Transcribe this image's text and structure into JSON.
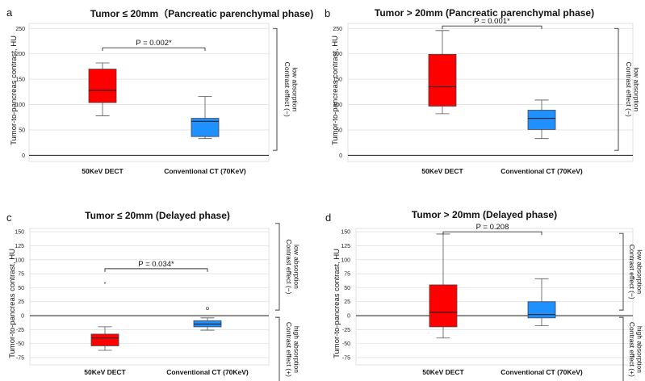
{
  "chart_data": [
    {
      "type": "box",
      "panel": "a",
      "title": "Tumor ≤ 20mm（Pancreatic parenchymal phase)",
      "ylabel": "Tumor-to-pancreas contrast, HU",
      "ylim": [
        -12,
        260
      ],
      "yticks": [
        0,
        50,
        100,
        150,
        200,
        250
      ],
      "categories": [
        "50KeV DECT",
        "Conventional CT (70KeV)"
      ],
      "boxes": [
        {
          "category": "50KeV DECT",
          "color": "#ff0000",
          "min": 78,
          "q1": 104,
          "median": 128,
          "q3": 170,
          "max": 182
        },
        {
          "category": "Conventional CT (70KeV)",
          "color": "#1e90ff",
          "min": 33,
          "q1": 37,
          "median": 67,
          "q3": 73,
          "max": 116
        }
      ],
      "outliers": [],
      "significance": {
        "label": "P = 0.002*",
        "y": 212
      },
      "brackets": [
        {
          "text": "low absorption\nContrast effect (−)",
          "from": 250,
          "to": 10
        }
      ]
    },
    {
      "type": "box",
      "panel": "b",
      "title": "Tumor > 20mm  (Pancreatic parenchymal phase)",
      "ylabel": "Tumor-to-pancreas contrast, HU",
      "ylim": [
        -12,
        260
      ],
      "yticks": [
        0,
        50,
        100,
        150,
        200,
        250
      ],
      "categories": [
        "50KeV DECT",
        "Conventional CT (70KeV)"
      ],
      "boxes": [
        {
          "category": "50KeV DECT",
          "color": "#ff0000",
          "min": 82,
          "q1": 97,
          "median": 135,
          "q3": 199,
          "max": 246
        },
        {
          "category": "Conventional CT (70KeV)",
          "color": "#1e90ff",
          "min": 33,
          "q1": 51,
          "median": 73,
          "q3": 89,
          "max": 109
        }
      ],
      "outliers": [],
      "significance": {
        "label": "P = 0.001*",
        "y": 255
      },
      "brackets": [
        {
          "text": "low absorption\nContrast effect (−)",
          "from": 250,
          "to": 10
        }
      ]
    },
    {
      "type": "box",
      "panel": "c",
      "title": "Tumor ≤ 20mm (Delayed phase)",
      "ylabel": "Tumor-to-pancreas contrast, HU",
      "ylim": [
        -88,
        156
      ],
      "yticks": [
        -75,
        -50,
        -25,
        0,
        25,
        50,
        75,
        100,
        125,
        150
      ],
      "categories": [
        "50KeV DECT",
        "Conventional CT (70KeV)"
      ],
      "boxes": [
        {
          "category": "50KeV DECT",
          "color": "#ff0000",
          "min": -62,
          "q1": -54,
          "median": -40,
          "q3": -33,
          "max": -20
        },
        {
          "category": "Conventional CT (70KeV)",
          "color": "#1e90ff",
          "min": -26,
          "q1": -20,
          "median": -15,
          "q3": -9,
          "max": -4
        }
      ],
      "outliers": [
        {
          "category": "50KeV DECT",
          "value": 58,
          "marker": "star"
        },
        {
          "category": "Conventional CT (70KeV)",
          "value": 13,
          "marker": "circle"
        }
      ],
      "significance": {
        "label": "P = 0.034*",
        "y": 84
      },
      "brackets": [
        {
          "text": "low absorption\nContrast effect (−)",
          "from": 165,
          "to": 10
        },
        {
          "text": "high absorption\nContrast effect (+)",
          "from": -3,
          "to": -118
        }
      ]
    },
    {
      "type": "box",
      "panel": "d",
      "title": "Tumor > 20mm (Delayed phase)",
      "ylabel": "Tumor-to-pancreas contrast, HU",
      "ylim": [
        -88,
        156
      ],
      "yticks": [
        -75,
        -50,
        -25,
        0,
        25,
        50,
        75,
        100,
        125,
        150
      ],
      "categories": [
        "50KeV DECT",
        "Conventional CT (70KeV)"
      ],
      "boxes": [
        {
          "category": "50KeV DECT",
          "color": "#ff0000",
          "min": -40,
          "q1": -20,
          "median": 6,
          "q3": 55,
          "max": 146
        },
        {
          "category": "Conventional CT (70KeV)",
          "color": "#1e90ff",
          "min": -18,
          "q1": -4,
          "median": 2,
          "q3": 25,
          "max": 66
        }
      ],
      "outliers": [],
      "significance": {
        "label": "P = 0.208",
        "y": 150
      },
      "brackets": [
        {
          "text": "low absorption\nContrast effect (−)",
          "from": 147,
          "to": 10
        },
        {
          "text": "high absorption\nContrast effect (+)",
          "from": -3,
          "to": -118
        }
      ]
    }
  ]
}
